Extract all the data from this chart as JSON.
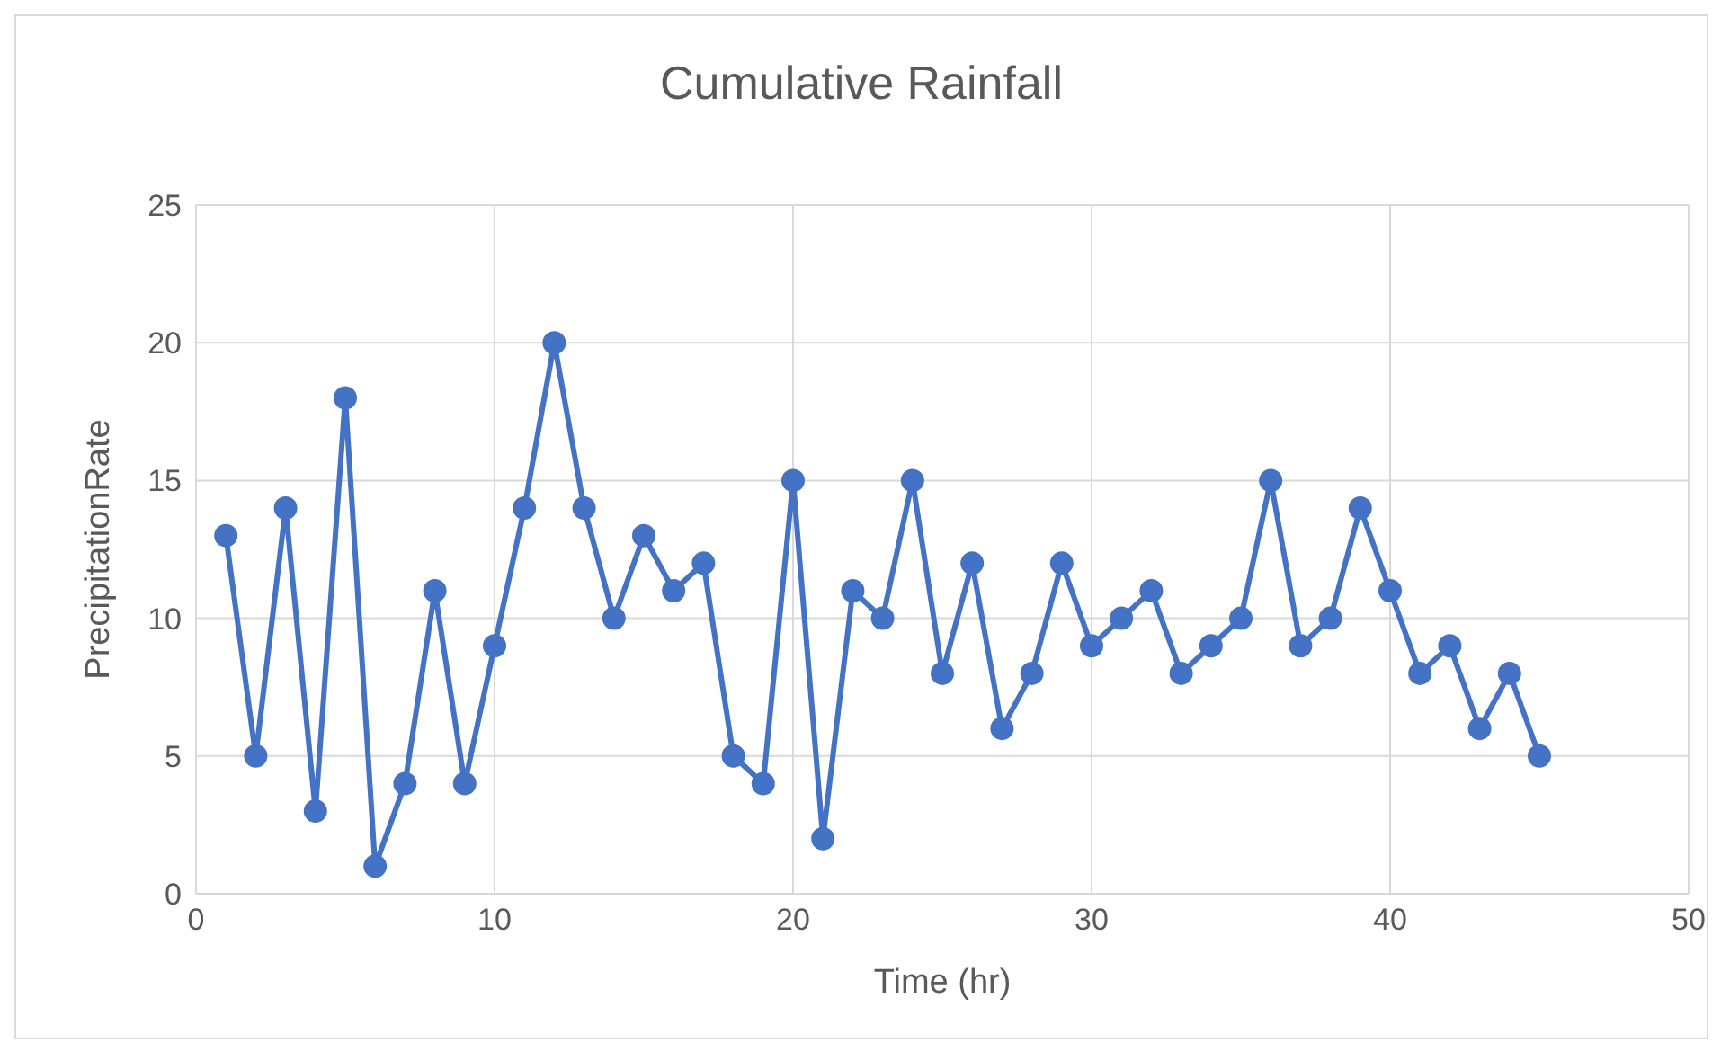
{
  "chart_data": {
    "type": "line",
    "title": "Cumulative Rainfall",
    "xlabel": "Time (hr)",
    "ylabel": "PrecipitationRate",
    "x": [
      1,
      2,
      3,
      4,
      5,
      6,
      7,
      8,
      9,
      10,
      11,
      12,
      13,
      14,
      15,
      16,
      17,
      18,
      19,
      20,
      21,
      22,
      23,
      24,
      25,
      26,
      27,
      28,
      29,
      30,
      31,
      32,
      33,
      34,
      35,
      36,
      37,
      38,
      39,
      40,
      41,
      42,
      43,
      44,
      45
    ],
    "values": [
      13,
      5,
      14,
      3,
      18,
      1,
      4,
      11,
      4,
      9,
      14,
      20,
      14,
      10,
      13,
      11,
      12,
      5,
      4,
      15,
      2,
      11,
      10,
      15,
      8,
      12,
      6,
      8,
      12,
      9,
      10,
      11,
      8,
      9,
      10,
      15,
      9,
      10,
      14,
      11,
      8,
      9,
      6,
      8,
      5
    ],
    "color": "#4472c4",
    "xlim": [
      0,
      50
    ],
    "xticks": [
      0,
      10,
      20,
      30,
      40,
      50
    ],
    "ylim": [
      0,
      25
    ],
    "yticks": [
      0,
      5,
      10,
      15,
      20,
      25
    ],
    "grid": true,
    "marker": "circle",
    "line_style": "solid"
  }
}
